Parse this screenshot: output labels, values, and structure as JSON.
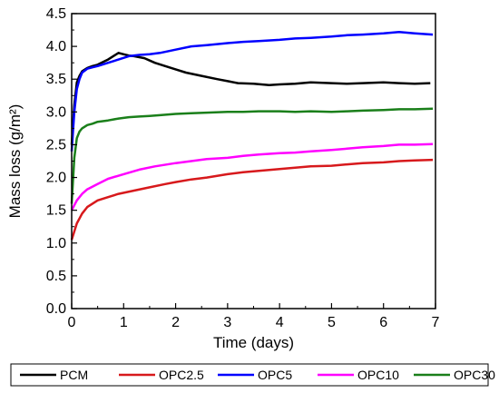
{
  "chart_data": {
    "type": "line",
    "title": "",
    "xlabel": "Time (days)",
    "ylabel": "Mass loss (g/m²)",
    "xlim": [
      0,
      7
    ],
    "ylim": [
      0.0,
      4.5
    ],
    "xticks": [
      "0",
      "1",
      "2",
      "3",
      "4",
      "5",
      "6",
      "7"
    ],
    "yticks": [
      "0.0",
      "0.5",
      "1.0",
      "1.5",
      "2.0",
      "2.5",
      "3.0",
      "3.5",
      "4.0",
      "4.5"
    ],
    "grid": false,
    "legend_position": "bottom",
    "series": [
      {
        "name": "PCM",
        "color": "#000000",
        "x": [
          0.0,
          0.05,
          0.1,
          0.15,
          0.2,
          0.3,
          0.4,
          0.5,
          0.6,
          0.7,
          0.8,
          0.9,
          1.0,
          1.1,
          1.2,
          1.4,
          1.6,
          1.8,
          2.0,
          2.2,
          2.5,
          2.8,
          3.0,
          3.2,
          3.5,
          3.8,
          4.0,
          4.3,
          4.6,
          5.0,
          5.3,
          5.6,
          6.0,
          6.3,
          6.6,
          6.9
        ],
        "y": [
          2.5,
          3.1,
          3.45,
          3.55,
          3.62,
          3.67,
          3.7,
          3.72,
          3.76,
          3.8,
          3.85,
          3.9,
          3.88,
          3.86,
          3.85,
          3.82,
          3.75,
          3.7,
          3.65,
          3.6,
          3.55,
          3.5,
          3.47,
          3.44,
          3.43,
          3.41,
          3.42,
          3.43,
          3.45,
          3.44,
          3.43,
          3.44,
          3.45,
          3.44,
          3.43,
          3.44
        ]
      },
      {
        "name": "OPC2.5",
        "color": "#d7191c",
        "x": [
          0.0,
          0.1,
          0.2,
          0.3,
          0.4,
          0.5,
          0.7,
          0.9,
          1.2,
          1.5,
          1.8,
          2.0,
          2.3,
          2.6,
          3.0,
          3.3,
          3.6,
          4.0,
          4.3,
          4.6,
          5.0,
          5.3,
          5.6,
          6.0,
          6.3,
          6.6,
          6.95
        ],
        "y": [
          1.05,
          1.3,
          1.45,
          1.55,
          1.6,
          1.65,
          1.7,
          1.75,
          1.8,
          1.85,
          1.9,
          1.93,
          1.97,
          2.0,
          2.05,
          2.08,
          2.1,
          2.13,
          2.15,
          2.17,
          2.18,
          2.2,
          2.22,
          2.23,
          2.25,
          2.26,
          2.27
        ]
      },
      {
        "name": "OPC5",
        "color": "#0000ff",
        "x": [
          0.0,
          0.05,
          0.1,
          0.15,
          0.2,
          0.3,
          0.4,
          0.5,
          0.7,
          0.9,
          1.1,
          1.3,
          1.5,
          1.7,
          2.0,
          2.3,
          2.6,
          3.0,
          3.3,
          3.6,
          4.0,
          4.3,
          4.6,
          5.0,
          5.3,
          5.6,
          6.0,
          6.3,
          6.6,
          6.95
        ],
        "y": [
          2.4,
          3.0,
          3.35,
          3.5,
          3.6,
          3.66,
          3.68,
          3.7,
          3.75,
          3.8,
          3.85,
          3.87,
          3.88,
          3.9,
          3.95,
          4.0,
          4.02,
          4.05,
          4.07,
          4.08,
          4.1,
          4.12,
          4.13,
          4.15,
          4.17,
          4.18,
          4.2,
          4.22,
          4.2,
          4.18
        ]
      },
      {
        "name": "OPC10",
        "color": "#ff00ff",
        "x": [
          0.0,
          0.1,
          0.2,
          0.3,
          0.5,
          0.7,
          1.0,
          1.3,
          1.6,
          2.0,
          2.3,
          2.6,
          3.0,
          3.3,
          3.6,
          4.0,
          4.3,
          4.6,
          5.0,
          5.3,
          5.6,
          6.0,
          6.3,
          6.6,
          6.95
        ],
        "y": [
          1.5,
          1.65,
          1.75,
          1.82,
          1.9,
          1.98,
          2.05,
          2.12,
          2.17,
          2.22,
          2.25,
          2.28,
          2.3,
          2.33,
          2.35,
          2.37,
          2.38,
          2.4,
          2.42,
          2.44,
          2.46,
          2.48,
          2.5,
          2.5,
          2.51
        ]
      },
      {
        "name": "OPC30",
        "color": "#1a7f1a",
        "x": [
          0.0,
          0.05,
          0.1,
          0.15,
          0.2,
          0.3,
          0.4,
          0.5,
          0.7,
          0.9,
          1.1,
          1.3,
          1.5,
          1.7,
          2.0,
          2.3,
          2.6,
          3.0,
          3.3,
          3.6,
          4.0,
          4.3,
          4.6,
          5.0,
          5.3,
          5.6,
          6.0,
          6.3,
          6.6,
          6.95
        ],
        "y": [
          1.6,
          2.3,
          2.6,
          2.7,
          2.75,
          2.8,
          2.82,
          2.85,
          2.87,
          2.9,
          2.92,
          2.93,
          2.94,
          2.95,
          2.97,
          2.98,
          2.99,
          3.0,
          3.0,
          3.01,
          3.01,
          3.0,
          3.01,
          3.0,
          3.01,
          3.02,
          3.03,
          3.04,
          3.04,
          3.05
        ]
      }
    ]
  }
}
